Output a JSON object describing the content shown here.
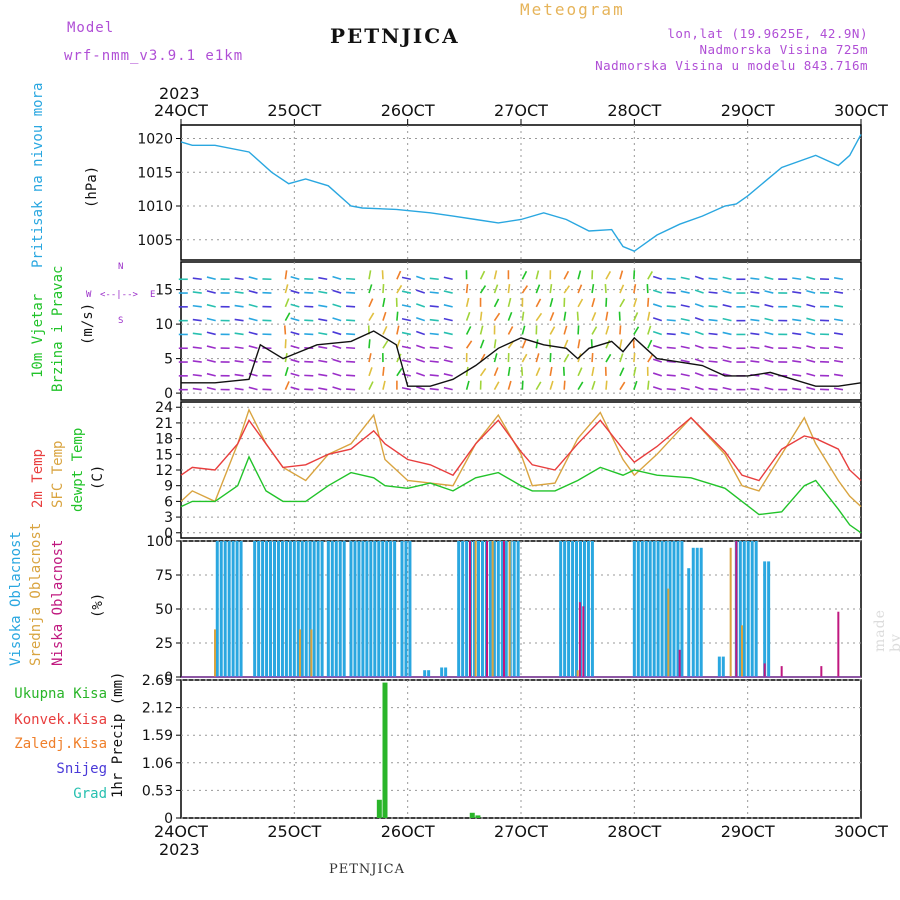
{
  "header": {
    "model_label": "Model",
    "model_name": "wrf-nmm_v3.9.1 e1km",
    "station": "PETNJICA",
    "chart_type": "Meteogram",
    "lonlat": "lon,lat (19.9625E, 42.9N)",
    "elevation": "Nadmorska Visina 725m",
    "model_elevation": "Nadmorska Visina u modelu 843.716m"
  },
  "footer": {
    "station": "PETNJICA",
    "credit": "made by Angel"
  },
  "colors": {
    "pressure": "#2aa7e0",
    "temp2m": "#e83e3e",
    "sfc": "#d9a440",
    "dew": "#22c32a",
    "high_cloud": "#2aa7e0",
    "mid_cloud": "#d9a440",
    "low_cloud": "#c0187f",
    "purple": "#9b2fc9",
    "rain": "#2ab52a"
  },
  "panels": {
    "pressure": {
      "ylabel": "Pritisak na nivou mora",
      "unit": "(hPa)"
    },
    "wind": {
      "ylabel1": "10m Vjetar",
      "ylabel2": "Brzina i Pravac",
      "unit": "(m/s)",
      "compass": {
        "n": "N",
        "s": "S",
        "w": "W",
        "e": "E",
        "arrow": "<--|-->"
      }
    },
    "temp": {
      "label1": "2m Temp",
      "label2": "SFC Temp",
      "label3": "dewpt Temp",
      "unit": "(C)"
    },
    "cloud": {
      "label1": "Visoka Oblacnost",
      "label2": "Srednja Oblacnost",
      "label3": "Niska Oblacnost",
      "unit": "(%)"
    },
    "precip": {
      "legend": [
        "Ukupna Kisa",
        "Konvek.Kisa",
        "Zaledj.Kisa",
        "Snijeg",
        "Grad"
      ],
      "legend_colors": [
        "#2ab52a",
        "#e83e3e",
        "#ef7f2a",
        "#4a3ad8",
        "#28c0b0"
      ],
      "unit": "1hr Precip (mm)"
    }
  },
  "chart_data": {
    "type": "line",
    "x_dates": [
      "24OCT",
      "25OCT",
      "26OCT",
      "27OCT",
      "28OCT",
      "29OCT",
      "30OCT"
    ],
    "year": "2023",
    "pressure": {
      "ylim": [
        1002,
        1022
      ],
      "yticks": [
        1005,
        1010,
        1015,
        1020
      ],
      "x": [
        0,
        0.1,
        0.3,
        0.6,
        0.8,
        0.95,
        1.1,
        1.3,
        1.5,
        1.6,
        1.9,
        2.2,
        2.4,
        2.6,
        2.8,
        3.0,
        3.2,
        3.4,
        3.6,
        3.8,
        3.9,
        4.0,
        4.1,
        4.2,
        4.4,
        4.6,
        4.8,
        4.9,
        5.0,
        5.3,
        5.6,
        5.8,
        5.9,
        6.0
      ],
      "y": [
        1019.5,
        1019,
        1019,
        1018,
        1015,
        1013.3,
        1014,
        1013,
        1010,
        1009.7,
        1009.5,
        1009,
        1008.5,
        1008,
        1007.5,
        1008,
        1009,
        1008,
        1006.3,
        1006.5,
        1004,
        1003.3,
        1004.5,
        1005.7,
        1007.3,
        1008.5,
        1010,
        1010.3,
        1011.5,
        1015.7,
        1017.5,
        1016,
        1017.5,
        1020.6
      ]
    },
    "wind": {
      "ylim": [
        -1,
        19
      ],
      "yticks": [
        0,
        5,
        10,
        15
      ],
      "x": [
        0,
        0.3,
        0.6,
        0.7,
        0.9,
        1.2,
        1.5,
        1.7,
        1.9,
        2.0,
        2.2,
        2.4,
        2.6,
        2.8,
        3.0,
        3.2,
        3.4,
        3.5,
        3.6,
        3.8,
        3.9,
        4.0,
        4.1,
        4.2,
        4.4,
        4.6,
        4.8,
        5.0,
        5.2,
        5.4,
        5.6,
        5.8,
        6.0
      ],
      "y": [
        1.5,
        1.5,
        2,
        7,
        5,
        7,
        7.5,
        9,
        7,
        1,
        1,
        2,
        4,
        6.5,
        8,
        7,
        6.5,
        5,
        6.5,
        7.5,
        6,
        8,
        6.5,
        5,
        4.5,
        4,
        2.5,
        2.5,
        3,
        2,
        1,
        1,
        1.5
      ]
    },
    "temperature": {
      "ylim": [
        -1,
        25
      ],
      "yticks": [
        0,
        3,
        6,
        9,
        12,
        15,
        18,
        21,
        24
      ],
      "x": [
        0,
        0.1,
        0.3,
        0.5,
        0.6,
        0.75,
        0.9,
        1.1,
        1.3,
        1.5,
        1.7,
        1.8,
        2.0,
        2.2,
        2.4,
        2.6,
        2.8,
        3.0,
        3.1,
        3.3,
        3.5,
        3.7,
        3.9,
        4.0,
        4.2,
        4.5,
        4.8,
        4.95,
        5.1,
        5.3,
        5.5,
        5.6,
        5.8,
        5.9,
        6.0
      ],
      "temp2m": [
        11,
        12.5,
        12,
        17,
        21.5,
        17,
        12.5,
        13,
        15,
        16,
        19.5,
        17,
        14,
        13,
        11,
        17,
        21.5,
        15.5,
        13,
        12,
        17,
        21.5,
        16,
        13.5,
        16.5,
        22,
        15.5,
        11,
        10,
        16,
        18.5,
        18,
        16,
        12,
        10
      ],
      "sfc_temp": [
        6,
        8,
        6,
        17,
        23.5,
        17,
        12.5,
        10,
        15,
        17,
        22.5,
        14,
        10,
        9.5,
        9,
        17,
        22.5,
        15,
        9,
        9.5,
        18,
        23,
        14,
        11,
        15,
        22,
        15,
        9,
        8,
        15,
        22,
        17,
        10,
        7,
        5
      ],
      "dewpt": [
        5,
        6,
        6,
        9,
        14.5,
        8,
        6,
        6,
        9,
        11.5,
        10.5,
        9,
        8.5,
        9.5,
        8,
        10.5,
        11.5,
        9,
        8,
        8,
        10,
        12.5,
        11,
        12,
        11,
        10.5,
        8.5,
        6,
        3.5,
        4,
        9,
        10,
        4.5,
        1.5,
        0
      ]
    },
    "cloud": {
      "ylim": [
        0,
        100
      ],
      "yticks": [
        0,
        25,
        50,
        75,
        100
      ],
      "high_bars": [
        [
          0.32,
          0.55,
          100
        ],
        [
          0.65,
          1.25,
          100
        ],
        [
          1.3,
          1.45,
          100
        ],
        [
          1.5,
          1.9,
          100
        ],
        [
          1.95,
          2.05,
          100
        ],
        [
          2.15,
          2.2,
          5
        ],
        [
          2.3,
          2.35,
          7
        ],
        [
          2.45,
          3.0,
          100
        ],
        [
          3.35,
          3.65,
          100
        ],
        [
          4.0,
          4.45,
          100
        ],
        [
          4.48,
          4.5,
          80
        ],
        [
          4.52,
          4.6,
          95
        ],
        [
          4.75,
          4.8,
          15
        ],
        [
          4.9,
          5.1,
          100
        ],
        [
          5.15,
          5.2,
          85
        ]
      ],
      "mid_bars": [
        [
          0.3,
          35
        ],
        [
          1.05,
          35
        ],
        [
          1.15,
          35
        ],
        [
          2.6,
          100
        ],
        [
          2.75,
          100
        ],
        [
          2.9,
          100
        ],
        [
          3.5,
          5
        ],
        [
          4.3,
          65
        ],
        [
          4.85,
          95
        ],
        [
          4.95,
          38
        ]
      ],
      "low_bars": [
        [
          2.55,
          100
        ],
        [
          2.7,
          100
        ],
        [
          2.85,
          100
        ],
        [
          3.52,
          55
        ],
        [
          3.55,
          52
        ],
        [
          4.4,
          20
        ],
        [
          4.9,
          100
        ],
        [
          5.15,
          10
        ],
        [
          5.3,
          8
        ],
        [
          5.65,
          8
        ],
        [
          5.8,
          48
        ]
      ]
    },
    "precip": {
      "ylim": [
        0,
        2.65
      ],
      "yticks": [
        0,
        0.53,
        1.06,
        1.59,
        2.12,
        2.65
      ],
      "total_bars": [
        [
          1.75,
          0.35
        ],
        [
          1.8,
          2.6
        ],
        [
          2.57,
          0.1
        ],
        [
          2.62,
          0.05
        ]
      ]
    }
  }
}
